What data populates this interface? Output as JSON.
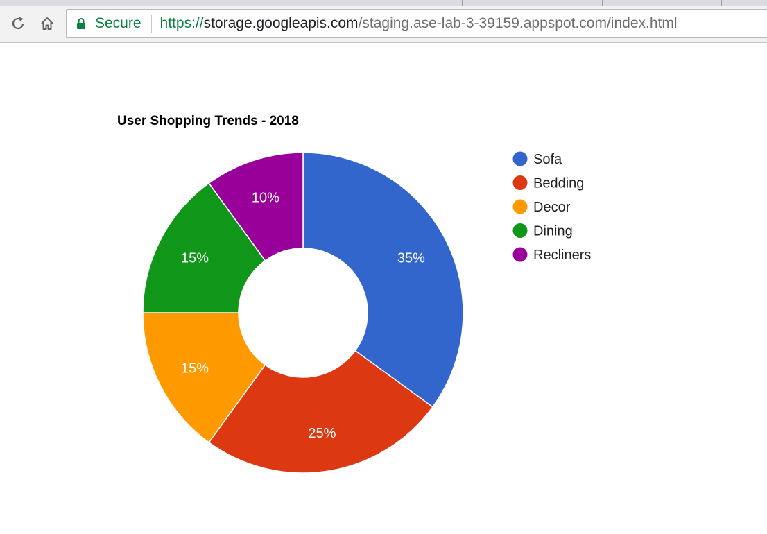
{
  "browser": {
    "security_label": "Secure",
    "url_scheme": "https://",
    "url_host": "storage.googleapis.com",
    "url_path": "/staging.ase-lab-3-39159.appspot.com/index.html"
  },
  "chart_data": {
    "type": "pie",
    "donut": true,
    "title": "User Shopping Trends - 2018",
    "legend_position": "right",
    "slices": [
      {
        "name": "Sofa",
        "value": 35,
        "label": "35%",
        "color": "#3366cc"
      },
      {
        "name": "Bedding",
        "value": 25,
        "label": "25%",
        "color": "#dc3912"
      },
      {
        "name": "Decor",
        "value": 15,
        "label": "15%",
        "color": "#ff9900"
      },
      {
        "name": "Dining",
        "value": 15,
        "label": "15%",
        "color": "#109618"
      },
      {
        "name": "Recliners",
        "value": 10,
        "label": "10%",
        "color": "#990099"
      }
    ]
  }
}
